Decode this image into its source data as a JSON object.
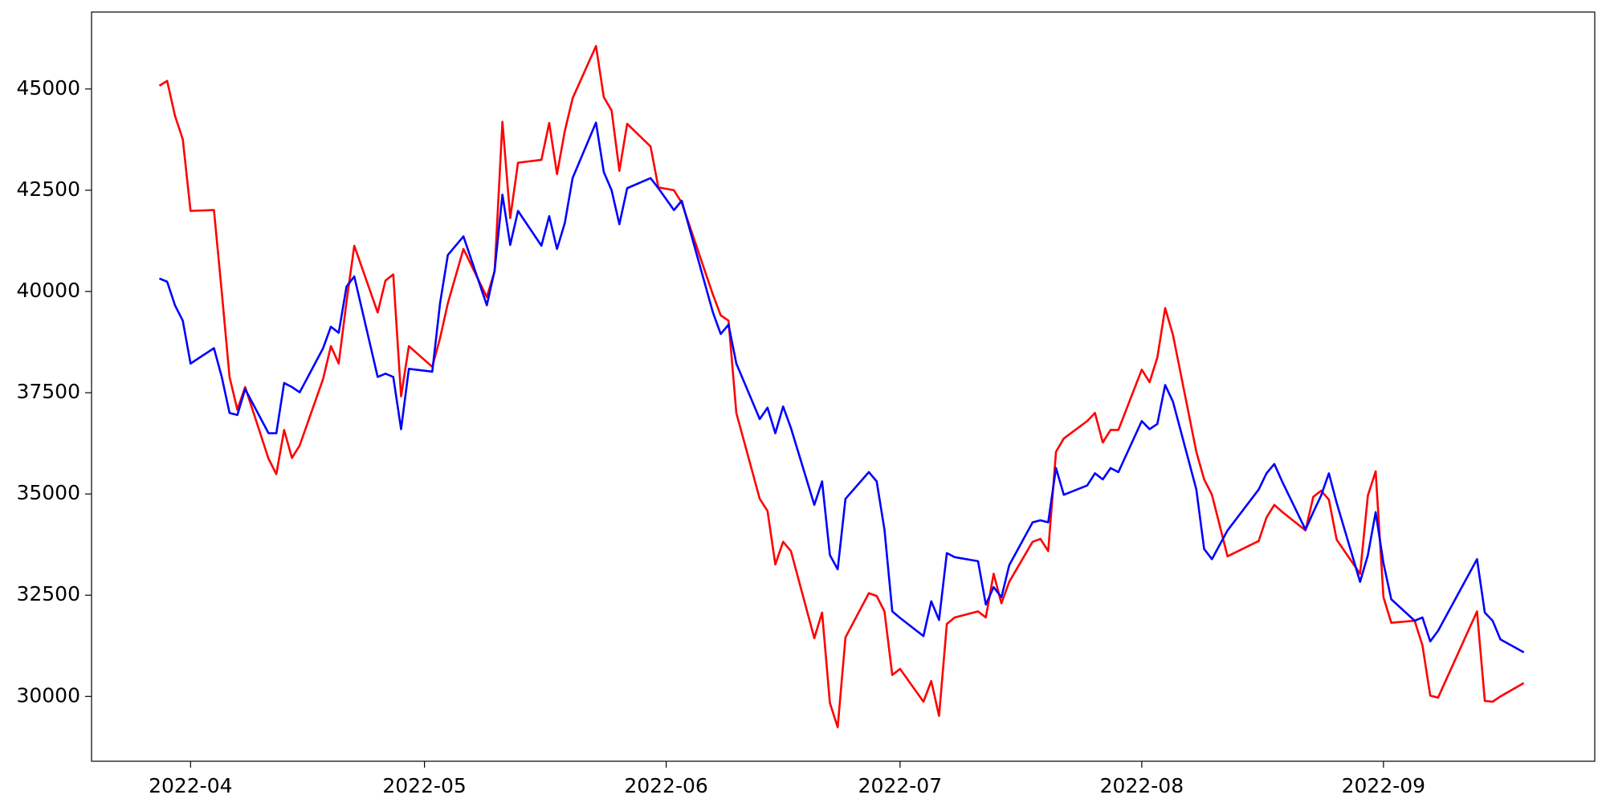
{
  "chart_data": {
    "type": "line",
    "x": [
      -4,
      -3,
      -2,
      -1,
      0,
      3,
      4,
      5,
      6,
      7,
      10,
      11,
      12,
      13,
      14,
      17,
      18,
      19,
      20,
      21,
      24,
      25,
      26,
      27,
      28,
      31,
      32,
      33,
      35,
      38,
      39,
      40,
      41,
      42,
      45,
      46,
      47,
      48,
      49,
      52,
      53,
      54,
      55,
      56,
      59,
      60,
      62,
      63,
      67,
      68,
      69,
      70,
      73,
      74,
      75,
      76,
      77,
      80,
      81,
      82,
      83,
      84,
      87,
      88,
      89,
      90,
      91,
      94,
      95,
      96,
      97,
      98,
      101,
      102,
      103,
      104,
      105,
      108,
      109,
      110,
      111,
      112,
      115,
      116,
      117,
      118,
      119,
      122,
      123,
      124,
      125,
      126,
      129,
      130,
      131,
      133,
      137,
      138,
      139,
      140,
      143,
      144,
      145,
      146,
      147,
      150,
      151,
      152,
      153,
      154,
      157,
      158,
      159,
      160,
      165,
      166,
      167,
      168,
      171
    ],
    "series": [
      {
        "color": "#ff0000",
        "values": [
          45080,
          45200,
          44340,
          43760,
          41990,
          42010,
          39990,
          37890,
          37080,
          37640,
          35870,
          35490,
          36580,
          35890,
          36200,
          37840,
          38650,
          38220,
          39740,
          41130,
          39480,
          40270,
          40420,
          37410,
          38650,
          38140,
          38850,
          39710,
          41050,
          39860,
          40500,
          44190,
          41810,
          43180,
          43250,
          44160,
          42900,
          43960,
          44770,
          46060,
          44800,
          44470,
          42980,
          44140,
          43580,
          42570,
          42500,
          42190,
          39920,
          39410,
          39280,
          37000,
          34880,
          34580,
          33260,
          33820,
          33590,
          31440,
          32070,
          29840,
          29240,
          31460,
          32550,
          32480,
          32100,
          30530,
          30680,
          29870,
          30380,
          29520,
          31790,
          31950,
          32100,
          31950,
          33030,
          32300,
          32830,
          33820,
          33890,
          33590,
          36040,
          36370,
          36800,
          37000,
          36270,
          36580,
          36580,
          38070,
          37760,
          38370,
          39590,
          38930,
          36040,
          35360,
          34980,
          33460,
          33840,
          34420,
          34730,
          34560,
          34100,
          34930,
          35080,
          34860,
          33870,
          33030,
          34960,
          35560,
          32450,
          31820,
          31870,
          31260,
          30020,
          29970,
          32100,
          29890,
          29870,
          30000,
          30330
        ]
      },
      {
        "color": "#0000ff",
        "values": [
          40320,
          40240,
          39660,
          39280,
          38220,
          38600,
          37890,
          37000,
          36950,
          37590,
          36500,
          36500,
          37740,
          37640,
          37510,
          38600,
          39130,
          38980,
          40120,
          40370,
          37890,
          37970,
          37890,
          36600,
          38090,
          38020,
          39710,
          40900,
          41360,
          39660,
          40520,
          42390,
          41150,
          41990,
          41130,
          41860,
          41050,
          41690,
          42800,
          44170,
          42950,
          42500,
          41660,
          42550,
          42800,
          42550,
          42010,
          42240,
          39480,
          38950,
          39180,
          38220,
          36850,
          37130,
          36500,
          37160,
          36630,
          34730,
          35310,
          33490,
          33140,
          34880,
          35540,
          35310,
          34120,
          32100,
          31940,
          31490,
          32350,
          31890,
          33540,
          33440,
          33340,
          32270,
          32700,
          32450,
          33240,
          34300,
          34350,
          34300,
          35640,
          34980,
          35210,
          35510,
          35360,
          35640,
          35540,
          36800,
          36600,
          36730,
          37690,
          37280,
          35110,
          33640,
          33390,
          34100,
          35110,
          35510,
          35740,
          35310,
          34120,
          34550,
          34960,
          35510,
          34780,
          32830,
          33490,
          34550,
          33290,
          32400,
          31870,
          31950,
          31360,
          31620,
          33390,
          32070,
          31870,
          31410,
          31090
        ]
      }
    ],
    "xlim": [
      -12.7,
      180.1
    ],
    "xticks": [
      {
        "value": 0,
        "label": "2022-04"
      },
      {
        "value": 30,
        "label": "2022-05"
      },
      {
        "value": 61,
        "label": "2022-06"
      },
      {
        "value": 91,
        "label": "2022-07"
      },
      {
        "value": 122,
        "label": "2022-08"
      },
      {
        "value": 153,
        "label": "2022-09"
      }
    ],
    "ylim": [
      28400,
      46900
    ],
    "yticks": [
      30000,
      32500,
      35000,
      37500,
      40000,
      42500,
      45000
    ],
    "grid": false
  }
}
